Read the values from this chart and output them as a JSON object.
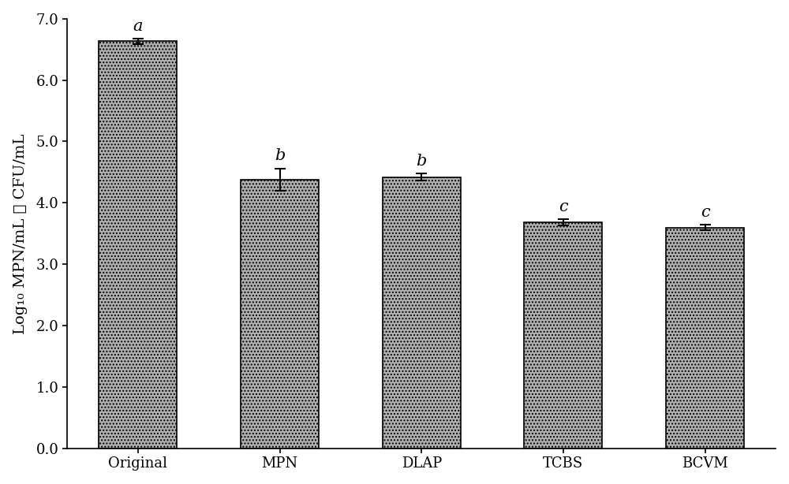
{
  "categories": [
    "Original",
    "MPN",
    "DLAP",
    "TCBS",
    "BCVM"
  ],
  "values": [
    6.63,
    4.38,
    4.42,
    3.68,
    3.6
  ],
  "errors": [
    0.04,
    0.18,
    0.06,
    0.05,
    0.04
  ],
  "labels": [
    "a",
    "b",
    "b",
    "c",
    "c"
  ],
  "bar_color": "#b0b0b0",
  "bar_edgecolor": "#000000",
  "ylabel": "Log₁₀ MPN/mL 或 CFU/mL",
  "ylim": [
    0.0,
    7.0
  ],
  "yticks": [
    0.0,
    1.0,
    2.0,
    3.0,
    4.0,
    5.0,
    6.0,
    7.0
  ],
  "ytick_labels": [
    "0.0",
    "1.0",
    "2.0",
    "3.0",
    "4.0",
    "5.0",
    "6.0",
    "7.0"
  ],
  "bar_width": 0.55,
  "label_fontsize": 14,
  "tick_fontsize": 13,
  "stat_label_fontsize": 15,
  "background_color": "#ffffff"
}
